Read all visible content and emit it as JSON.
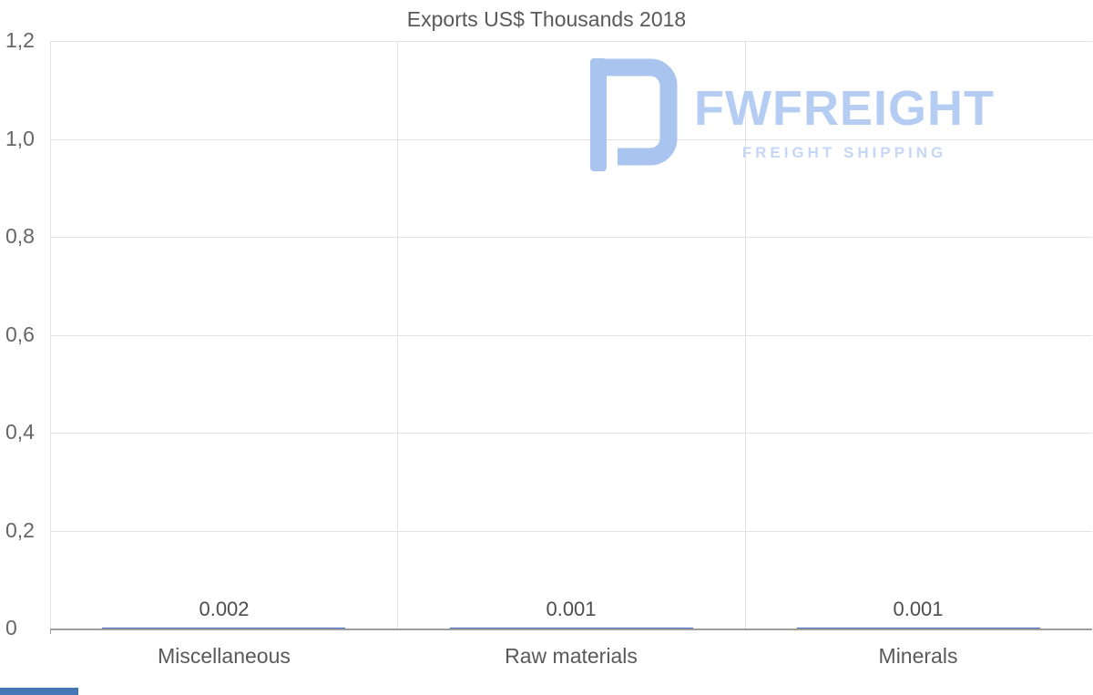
{
  "title": "Exports US$ Thousands 2018",
  "watermark": {
    "icon": "fwfreight-f-logo",
    "brand": "FWFREIGHT",
    "tagline": "FREIGHT SHIPPING"
  },
  "colors": {
    "title": "#595959",
    "axis_text": "#666666",
    "gridline": "#e3e3e3",
    "axis_line": "#9e9e9e",
    "bar": "#4472c4",
    "watermark_icon": "#a9c4ef",
    "watermark_text": "#b5ccf3",
    "watermark_tagline": "#c6d7f6",
    "footer_strip": "#4576b6"
  },
  "chart_data": {
    "type": "bar",
    "title": "Exports US$ Thousands 2018",
    "categories": [
      "Miscellaneous",
      "Raw materials",
      "Minerals"
    ],
    "values": [
      0.002,
      0.001,
      0.001
    ],
    "value_labels": [
      "0.002",
      "0.001",
      "0.001"
    ],
    "xlabel": "",
    "ylabel": "",
    "ylim": [
      0,
      1.2
    ],
    "ytick_values": [
      0,
      0.2,
      0.4,
      0.6,
      0.8,
      1.0,
      1.2
    ],
    "ytick_labels": [
      "0",
      "0,2",
      "0,4",
      "0,6",
      "0,8",
      "1,0",
      "1,2"
    ],
    "grid": true,
    "legend_position": "none"
  }
}
